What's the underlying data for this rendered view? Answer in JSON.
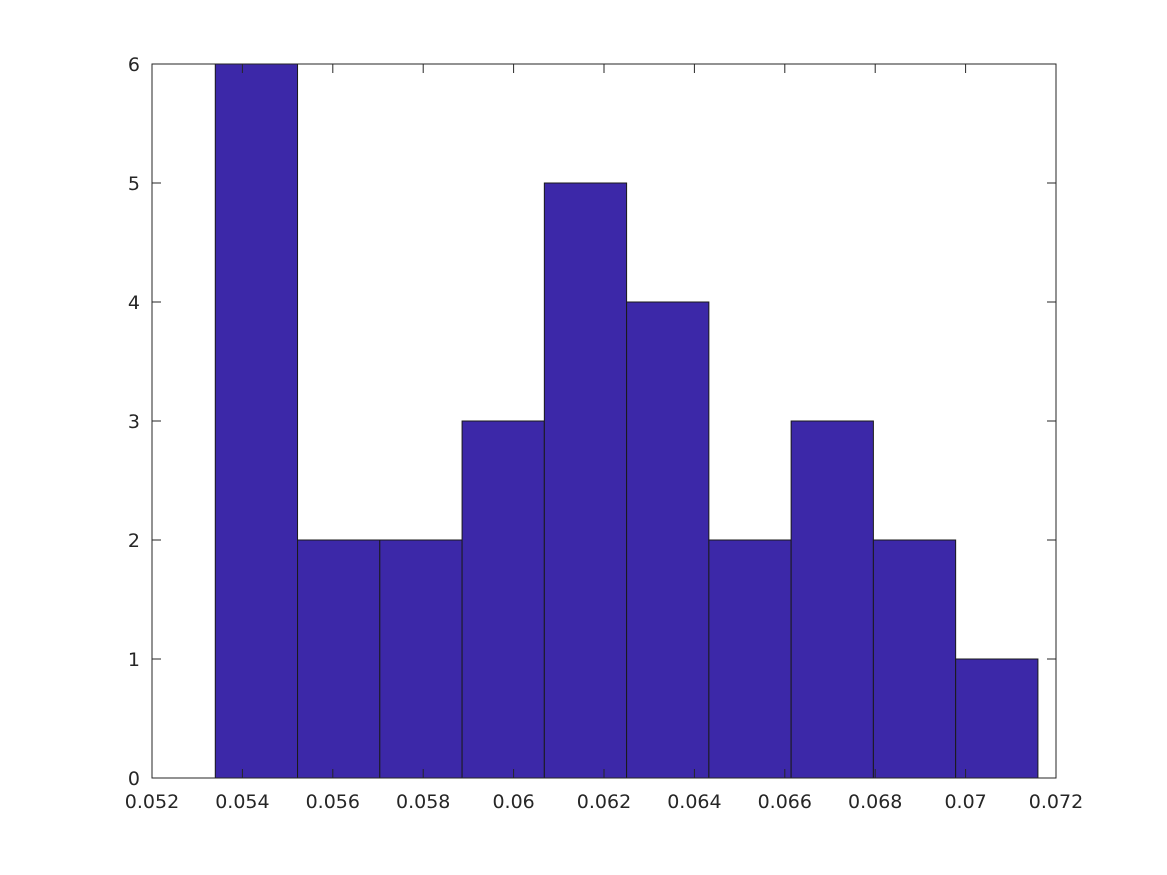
{
  "chart_data": {
    "type": "bar",
    "title": "",
    "xlabel": "",
    "ylabel": "",
    "bin_edges": [
      0.0534,
      0.05522,
      0.05704,
      0.05886,
      0.06068,
      0.0625,
      0.06432,
      0.06614,
      0.06796,
      0.06978,
      0.0716
    ],
    "values": [
      6,
      2,
      2,
      3,
      5,
      4,
      2,
      3,
      2,
      1
    ],
    "xlim": [
      0.052,
      0.072
    ],
    "ylim": [
      0,
      6
    ],
    "x_ticks": [
      0.052,
      0.054,
      0.056,
      0.058,
      0.06,
      0.062,
      0.064,
      0.066,
      0.068,
      0.07,
      0.072
    ],
    "x_tick_labels": [
      "0.052",
      "0.054",
      "0.056",
      "0.058",
      "0.06",
      "0.062",
      "0.064",
      "0.066",
      "0.068",
      "0.07",
      "0.072"
    ],
    "y_ticks": [
      0,
      1,
      2,
      3,
      4,
      5,
      6
    ],
    "y_tick_labels": [
      "0",
      "1",
      "2",
      "3",
      "4",
      "5",
      "6"
    ],
    "grid": false,
    "bar_color": "#3c28a8",
    "edge_color": "#1a1a1a"
  }
}
